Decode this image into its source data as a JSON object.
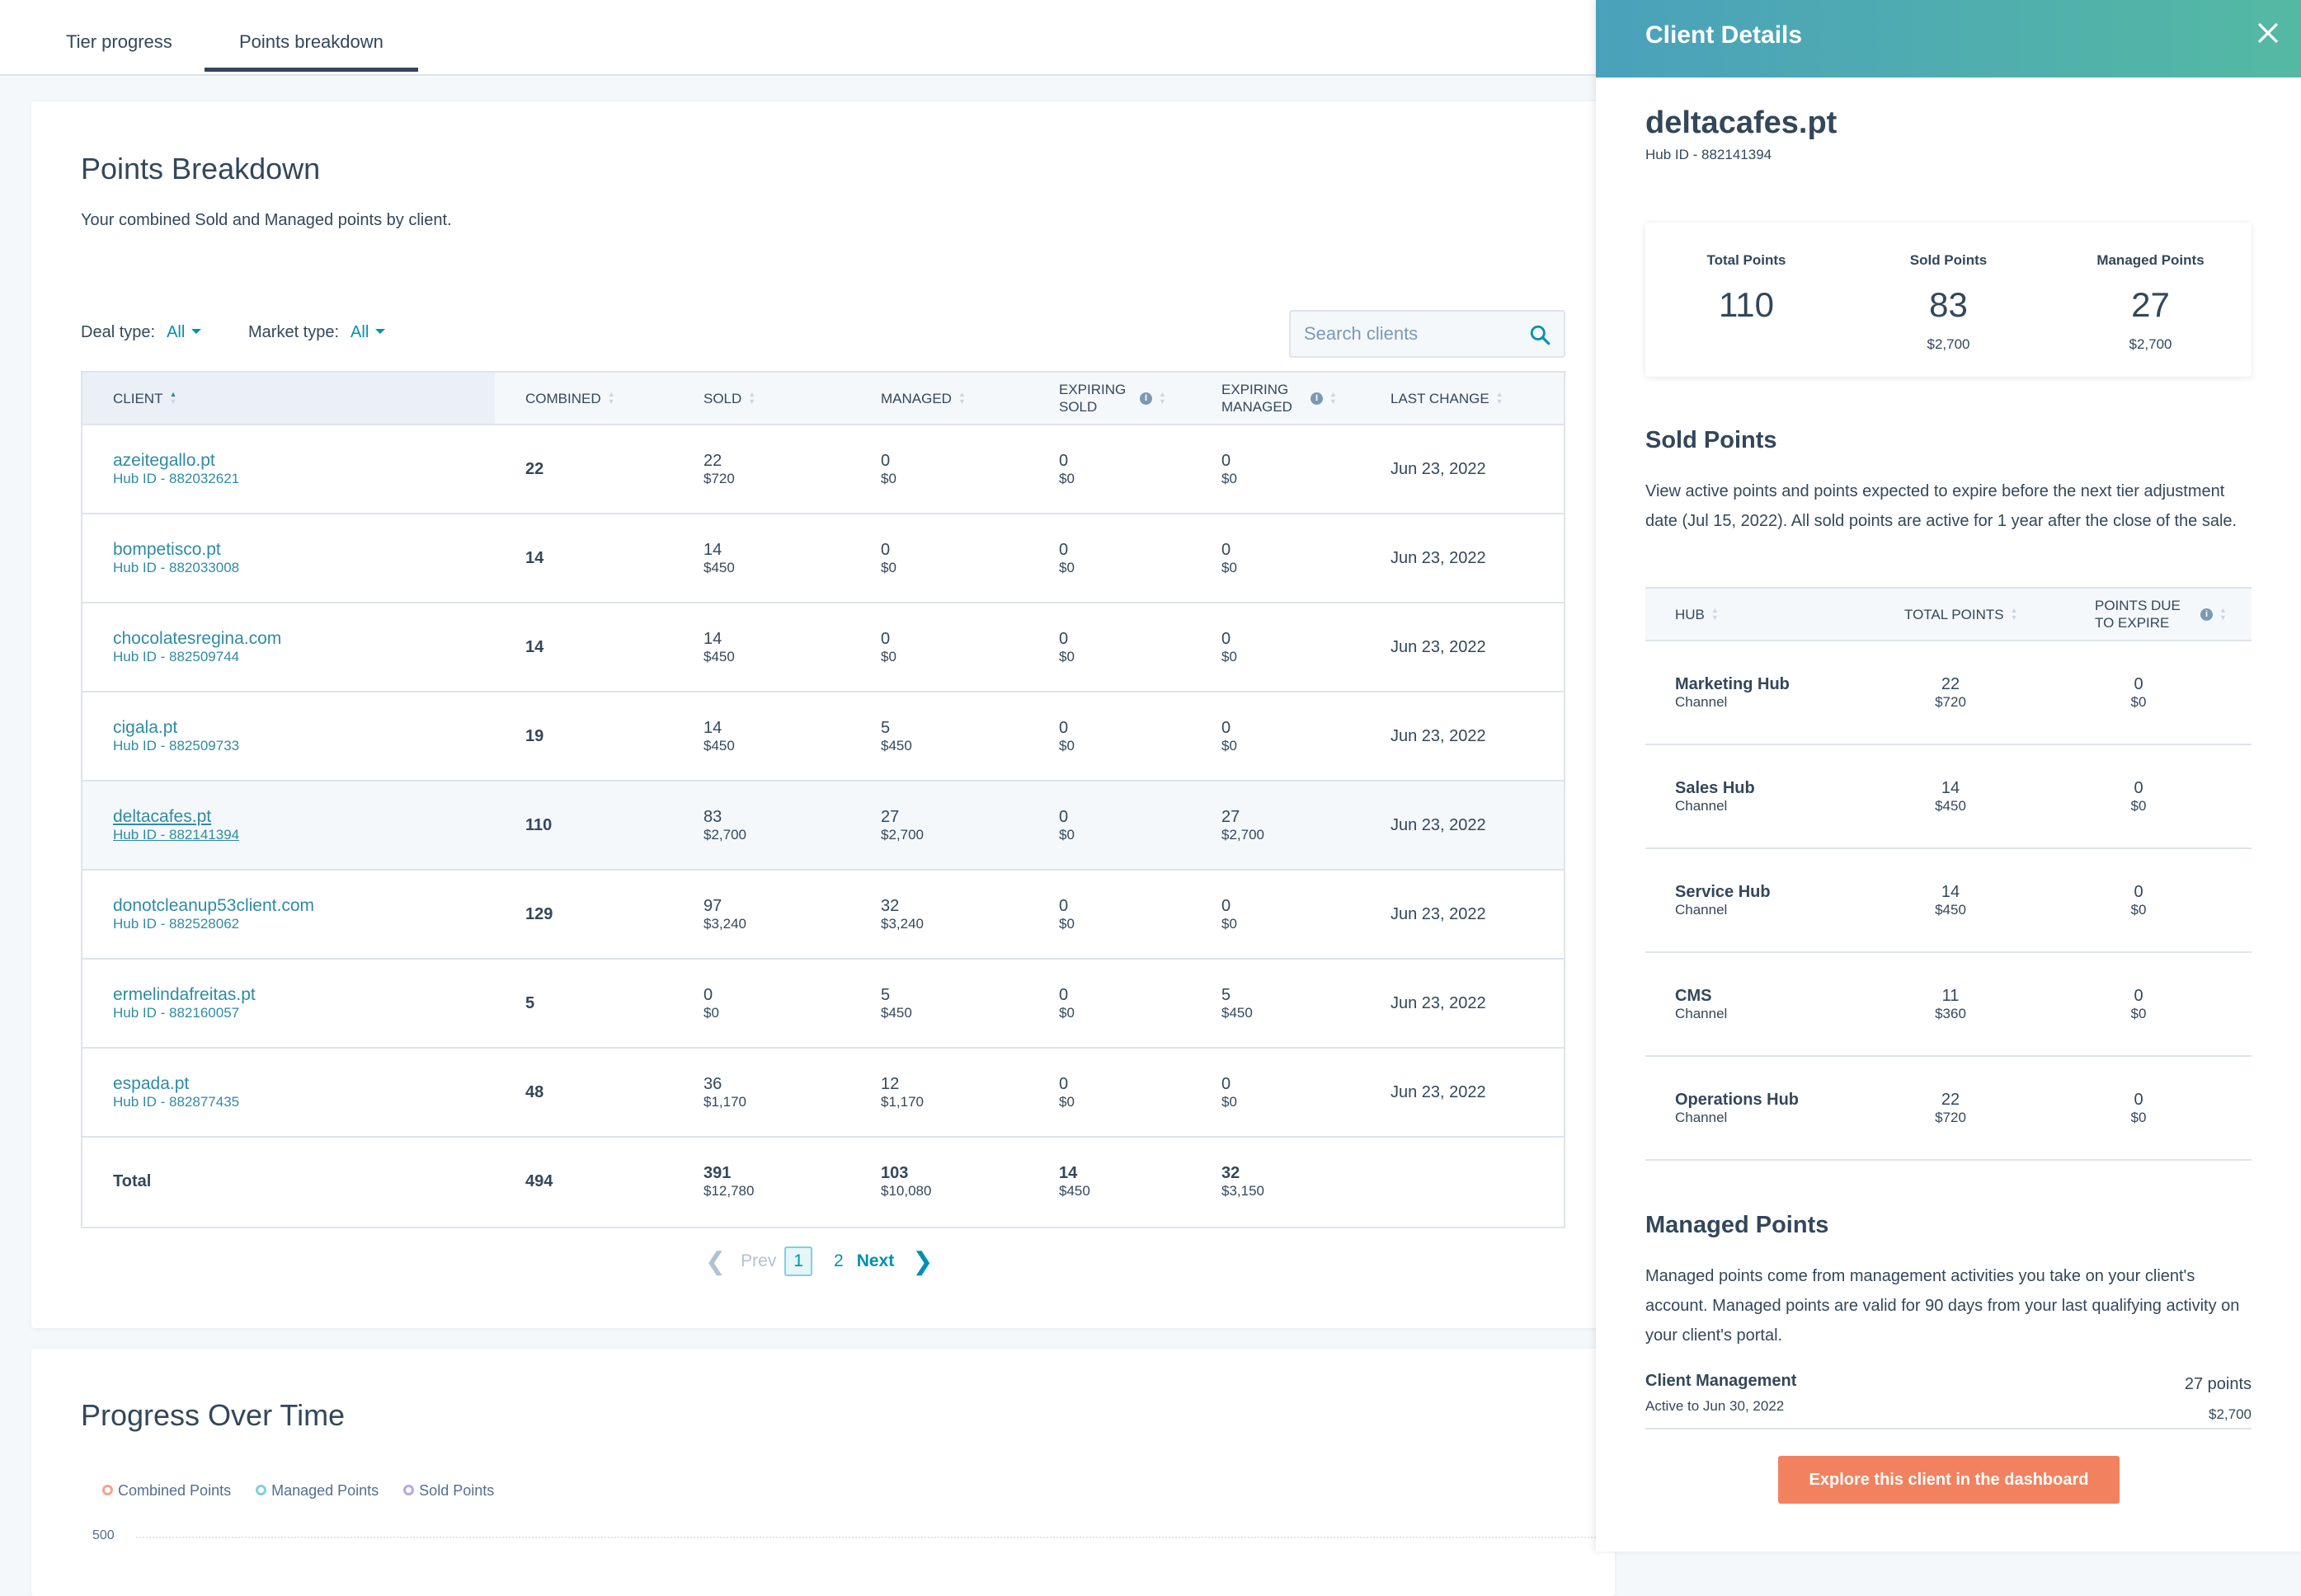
{
  "tabs": [
    {
      "label": "Tier progress"
    },
    {
      "label": "Points breakdown",
      "active": true
    }
  ],
  "breakdown": {
    "title": "Points Breakdown",
    "subtitle": "Your combined Sold and Managed points by client.",
    "deal_type_label": "Deal type:",
    "deal_type_value": "All",
    "market_type_label": "Market type:",
    "market_type_value": "All",
    "search_placeholder": "Search clients",
    "columns": [
      "CLIENT",
      "COMBINED",
      "SOLD",
      "MANAGED",
      "EXPIRING SOLD",
      "EXPIRING MANAGED",
      "LAST CHANGE"
    ],
    "rows": [
      {
        "name": "azeitegallo.pt",
        "hub": "Hub ID - 882032621",
        "combined": "22",
        "sold": "22",
        "sold_d": "$720",
        "managed": "0",
        "managed_d": "$0",
        "exp_sold": "0",
        "exp_sold_d": "$0",
        "exp_managed": "0",
        "exp_managed_d": "$0",
        "last": "Jun 23, 2022"
      },
      {
        "name": "bompetisco.pt",
        "hub": "Hub ID - 882033008",
        "combined": "14",
        "sold": "14",
        "sold_d": "$450",
        "managed": "0",
        "managed_d": "$0",
        "exp_sold": "0",
        "exp_sold_d": "$0",
        "exp_managed": "0",
        "exp_managed_d": "$0",
        "last": "Jun 23, 2022"
      },
      {
        "name": "chocolatesregina.com",
        "hub": "Hub ID - 882509744",
        "combined": "14",
        "sold": "14",
        "sold_d": "$450",
        "managed": "0",
        "managed_d": "$0",
        "exp_sold": "0",
        "exp_sold_d": "$0",
        "exp_managed": "0",
        "exp_managed_d": "$0",
        "last": "Jun 23, 2022"
      },
      {
        "name": "cigala.pt",
        "hub": "Hub ID - 882509733",
        "combined": "19",
        "sold": "14",
        "sold_d": "$450",
        "managed": "5",
        "managed_d": "$450",
        "exp_sold": "0",
        "exp_sold_d": "$0",
        "exp_managed": "0",
        "exp_managed_d": "$0",
        "last": "Jun 23, 2022"
      },
      {
        "name": "deltacafes.pt",
        "hub": "Hub ID - 882141394",
        "combined": "110",
        "sold": "83",
        "sold_d": "$2,700",
        "managed": "27",
        "managed_d": "$2,700",
        "exp_sold": "0",
        "exp_sold_d": "$0",
        "exp_managed": "27",
        "exp_managed_d": "$2,700",
        "last": "Jun 23, 2022",
        "selected": true
      },
      {
        "name": "donotcleanup53client.com",
        "hub": "Hub ID - 882528062",
        "combined": "129",
        "sold": "97",
        "sold_d": "$3,240",
        "managed": "32",
        "managed_d": "$3,240",
        "exp_sold": "0",
        "exp_sold_d": "$0",
        "exp_managed": "0",
        "exp_managed_d": "$0",
        "last": "Jun 23, 2022"
      },
      {
        "name": "ermelindafreitas.pt",
        "hub": "Hub ID - 882160057",
        "combined": "5",
        "sold": "0",
        "sold_d": "$0",
        "managed": "5",
        "managed_d": "$450",
        "exp_sold": "0",
        "exp_sold_d": "$0",
        "exp_managed": "5",
        "exp_managed_d": "$450",
        "last": "Jun 23, 2022"
      },
      {
        "name": "espada.pt",
        "hub": "Hub ID - 882877435",
        "combined": "48",
        "sold": "36",
        "sold_d": "$1,170",
        "managed": "12",
        "managed_d": "$1,170",
        "exp_sold": "0",
        "exp_sold_d": "$0",
        "exp_managed": "0",
        "exp_managed_d": "$0",
        "last": "Jun 23, 2022"
      }
    ],
    "total": {
      "label": "Total",
      "combined": "494",
      "sold": "391",
      "sold_d": "$12,780",
      "managed": "103",
      "managed_d": "$10,080",
      "exp_sold": "14",
      "exp_sold_d": "$450",
      "exp_managed": "32",
      "exp_managed_d": "$3,150"
    },
    "pagination": {
      "prev": "Prev",
      "pages": [
        "1",
        "2"
      ],
      "current": "1",
      "next": "Next"
    }
  },
  "progress": {
    "title": "Progress Over Time"
  },
  "chart_data": {
    "type": "line",
    "series": [
      {
        "name": "Combined Points",
        "color": "#f2a58e"
      },
      {
        "name": "Managed Points",
        "color": "#7fd1de"
      },
      {
        "name": "Sold Points",
        "color": "#b9a6e6"
      }
    ],
    "y_ticks": [
      500
    ],
    "legend": "top-left",
    "grid": true
  },
  "panel": {
    "title": "Client Details",
    "client": "deltacafes.pt",
    "hub": "Hub ID - 882141394",
    "stats": [
      {
        "label": "Total Points",
        "value": "110",
        "dollars": ""
      },
      {
        "label": "Sold Points",
        "value": "83",
        "dollars": "$2,700"
      },
      {
        "label": "Managed Points",
        "value": "27",
        "dollars": "$2,700"
      }
    ],
    "sold_title": "Sold Points",
    "sold_desc": "View active points and points expected to expire before the next tier adjustment date (Jul 15, 2022). All sold points are active for 1 year after the close of the sale.",
    "hub_columns": [
      "HUB",
      "TOTAL POINTS",
      "POINTS DUE TO EXPIRE"
    ],
    "hubs": [
      {
        "name": "Marketing Hub",
        "type": "Channel",
        "total": "22",
        "total_d": "$720",
        "due": "0",
        "due_d": "$0"
      },
      {
        "name": "Sales Hub",
        "type": "Channel",
        "total": "14",
        "total_d": "$450",
        "due": "0",
        "due_d": "$0"
      },
      {
        "name": "Service Hub",
        "type": "Channel",
        "total": "14",
        "total_d": "$450",
        "due": "0",
        "due_d": "$0"
      },
      {
        "name": "CMS",
        "type": "Channel",
        "total": "11",
        "total_d": "$360",
        "due": "0",
        "due_d": "$0"
      },
      {
        "name": "Operations Hub",
        "type": "Channel",
        "total": "22",
        "total_d": "$720",
        "due": "0",
        "due_d": "$0"
      }
    ],
    "managed_title": "Managed Points",
    "managed_desc": "Managed points come from management activities you take on your client's account. Managed points are valid for 90 days from your last qualifying activity on your client's portal.",
    "mgmt": {
      "name": "Client Management",
      "sub": "Active to Jun 30, 2022",
      "points": "27 points",
      "dollars": "$2,700"
    },
    "cta": "Explore this client in the dashboard",
    "cta_color": "#f2825f"
  }
}
